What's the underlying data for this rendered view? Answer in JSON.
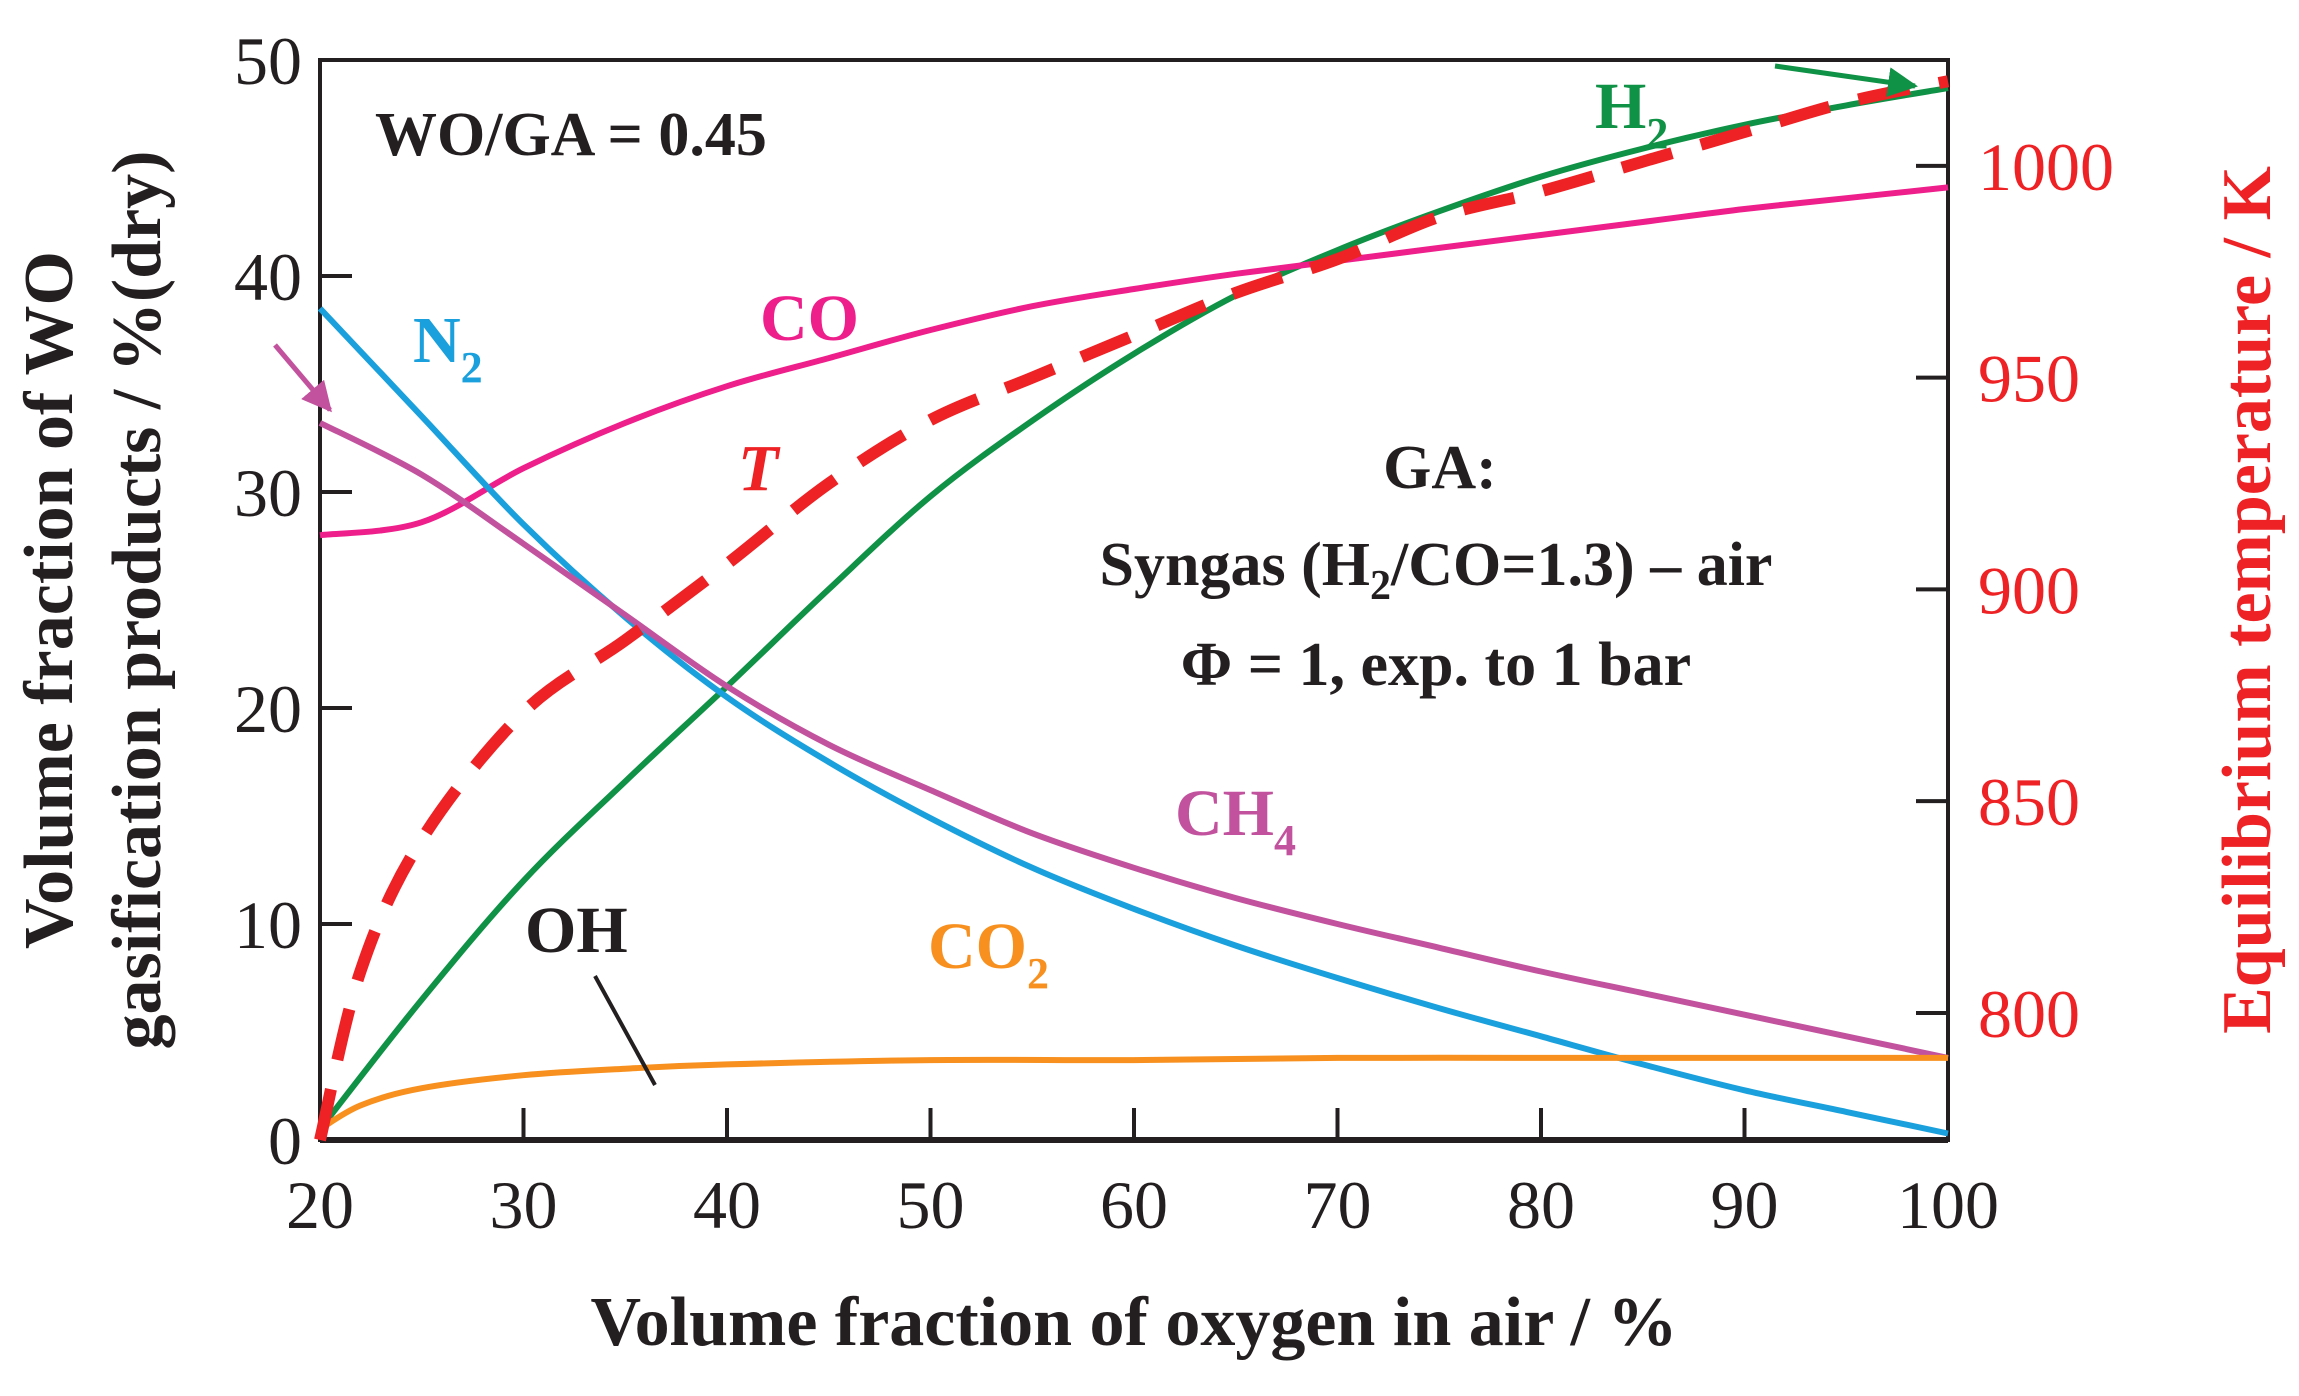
{
  "chart_data": {
    "type": "line",
    "xlabel": "Volume fraction of oxygen in air / %",
    "ylabel_line1": "Volume fraction of  WO",
    "ylabel_line2": "gasification products / %(dry)",
    "y2label": "Equilibrium temperature / K",
    "xlim": [
      20,
      100
    ],
    "ylim": [
      0,
      50
    ],
    "y2lim": [
      770,
      1025
    ],
    "xticks": [
      "20",
      "30",
      "40",
      "50",
      "60",
      "70",
      "80",
      "90",
      "100"
    ],
    "yticks": [
      "0",
      "10",
      "20",
      "30",
      "40",
      "50"
    ],
    "y2ticks": [
      "800",
      "850",
      "900",
      "950",
      "1000"
    ],
    "series": [
      {
        "name": "H2",
        "label_main": "H",
        "label_sub": "2",
        "color": "#0f9146",
        "axis": "left",
        "dash": false,
        "x": [
          20,
          25,
          30,
          35,
          40,
          45,
          50,
          55,
          60,
          65,
          70,
          75,
          80,
          85,
          90,
          95,
          100
        ],
        "y": [
          0.5,
          6.5,
          12,
          16.6,
          21,
          25.5,
          29.8,
          33.3,
          36.4,
          39.1,
          41.2,
          43,
          44.6,
          45.9,
          47,
          47.9,
          48.7
        ]
      },
      {
        "name": "CO",
        "label_main": "CO",
        "label_sub": "",
        "color": "#ee1e8b",
        "axis": "left",
        "dash": false,
        "x": [
          20,
          25,
          30,
          35,
          40,
          45,
          50,
          55,
          60,
          65,
          70,
          75,
          80,
          85,
          90,
          95,
          100
        ],
        "y": [
          28,
          28.6,
          31.1,
          33.2,
          34.9,
          36.2,
          37.5,
          38.6,
          39.4,
          40.1,
          40.7,
          41.3,
          41.9,
          42.5,
          43.1,
          43.6,
          44.1
        ]
      },
      {
        "name": "N2",
        "label_main": "N",
        "label_sub": "2",
        "color": "#1aa0dc",
        "axis": "left",
        "dash": false,
        "x": [
          20,
          25,
          30,
          35,
          40,
          45,
          50,
          55,
          60,
          65,
          70,
          75,
          80,
          85,
          90,
          95,
          100
        ],
        "y": [
          38.5,
          33.5,
          28.5,
          24.2,
          20.5,
          17.5,
          14.9,
          12.6,
          10.7,
          9,
          7.5,
          6.1,
          4.8,
          3.5,
          2.3,
          1.3,
          0.3
        ]
      },
      {
        "name": "CH4",
        "label_main": "CH",
        "label_sub": "4",
        "color": "#c2529d",
        "axis": "left",
        "dash": false,
        "x": [
          20,
          25,
          30,
          35,
          40,
          45,
          50,
          55,
          60,
          65,
          70,
          75,
          80,
          85,
          90,
          95,
          100
        ],
        "y": [
          33.2,
          30.8,
          27.6,
          24.3,
          21,
          18.3,
          16.2,
          14.2,
          12.6,
          11.2,
          10,
          8.9,
          7.8,
          6.8,
          5.8,
          4.8,
          3.8
        ]
      },
      {
        "name": "CO2",
        "label_main": "CO",
        "label_sub": "2",
        "color": "#f7901e",
        "axis": "left",
        "dash": false,
        "x": [
          20,
          22,
          25,
          30,
          35,
          40,
          50,
          60,
          70,
          80,
          90,
          100
        ],
        "y": [
          0.5,
          1.6,
          2.4,
          3,
          3.3,
          3.5,
          3.7,
          3.7,
          3.8,
          3.8,
          3.8,
          3.8
        ]
      },
      {
        "name": "OH",
        "label_main": "OH",
        "label_sub": "",
        "color": "#231f20",
        "axis": "left",
        "dash": false,
        "x": [
          20,
          100
        ],
        "y": [
          0,
          0
        ]
      },
      {
        "name": "T",
        "label_main": "T",
        "label_sub": "",
        "color": "#ee2124",
        "axis": "right",
        "dash": true,
        "x": [
          20,
          22,
          25,
          30,
          35,
          40,
          45,
          50,
          55,
          60,
          65,
          70,
          75,
          80,
          85,
          90,
          95,
          100
        ],
        "y": [
          770,
          810,
          841,
          871,
          888,
          906,
          925,
          940,
          950,
          960,
          970,
          978,
          988,
          994,
          1001,
          1008,
          1015,
          1020
        ]
      }
    ],
    "annotations": {
      "ratio": "WO/GA = 0.45",
      "ga_title": "GA:",
      "ga_line1_a": "Syngas (H",
      "ga_line1_sub": "2",
      "ga_line1_b": "/CO=1.3) – air",
      "ga_line2": "Φ = 1, exp. to 1 bar"
    }
  }
}
